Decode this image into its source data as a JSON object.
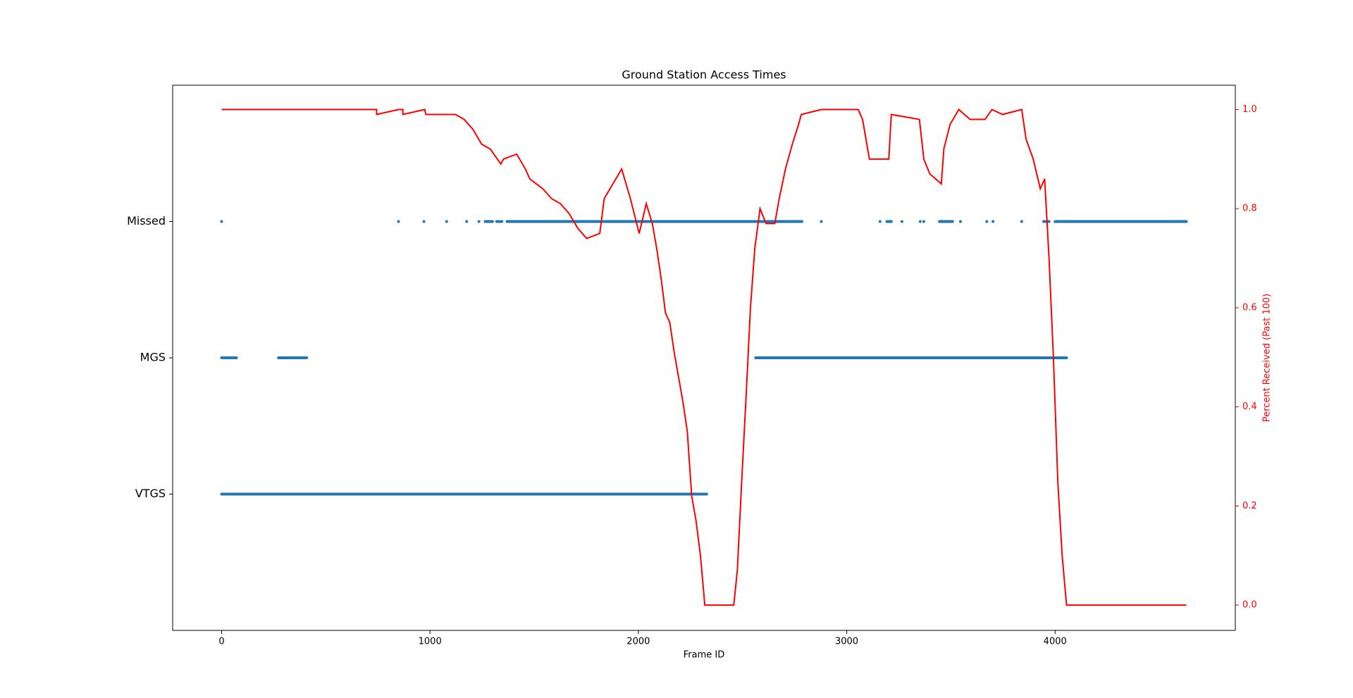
{
  "chart_data": {
    "type": "scatter",
    "title": "Ground Station Access Times",
    "xlabel": "Frame ID",
    "y2label": "Percent Received (Past 100)",
    "xlim": [
      -235,
      4865
    ],
    "xticks": [
      0,
      1000,
      2000,
      3000,
      4000
    ],
    "ylim": [
      -1,
      3
    ],
    "yticks": [
      {
        "value": 0,
        "label": "VTGS"
      },
      {
        "value": 1,
        "label": "MGS"
      },
      {
        "value": 2,
        "label": "Missed"
      }
    ],
    "y2lim": [
      -0.051,
      1.049
    ],
    "y2ticks": [
      {
        "value": 0,
        "label": "0.0"
      },
      {
        "value": 0.2,
        "label": "0.2"
      },
      {
        "value": 0.4,
        "label": "0.4"
      },
      {
        "value": 0.6,
        "label": "0.6"
      },
      {
        "value": 0.8,
        "label": "0.8"
      },
      {
        "value": 1.0,
        "label": "1.0"
      }
    ],
    "series": [
      {
        "name": "Missed",
        "color": "#1f77b4",
        "y": 2,
        "ranges": [
          [
            0,
            0
          ],
          [
            849,
            849
          ],
          [
            971,
            971
          ],
          [
            1080,
            1080
          ],
          [
            1176,
            1176
          ],
          [
            1235,
            1235
          ],
          [
            1265,
            1300
          ],
          [
            1320,
            1345
          ],
          [
            1370,
            2785
          ],
          [
            2878,
            2878
          ],
          [
            3160,
            3160
          ],
          [
            3193,
            3214
          ],
          [
            3265,
            3265
          ],
          [
            3353,
            3353
          ],
          [
            3370,
            3370
          ],
          [
            3445,
            3508
          ],
          [
            3546,
            3546
          ],
          [
            3672,
            3672
          ],
          [
            3702,
            3702
          ],
          [
            3840,
            3840
          ],
          [
            3945,
            3971
          ],
          [
            4000,
            4630
          ]
        ]
      },
      {
        "name": "MGS",
        "color": "#1f77b4",
        "y": 1,
        "ranges": [
          [
            0,
            71
          ],
          [
            273,
            408
          ],
          [
            2563,
            4055
          ]
        ]
      },
      {
        "name": "VTGS",
        "color": "#1f77b4",
        "y": 0,
        "ranges": [
          [
            0,
            2328
          ]
        ]
      },
      {
        "name": "Percent Received",
        "type": "line",
        "axis": "y2",
        "color": "#ff0000",
        "x": [
          0,
          744,
          744,
          849,
          870,
          870,
          975,
          980,
          1122,
          1164,
          1206,
          1248,
          1290,
          1340,
          1353,
          1416,
          1458,
          1479,
          1542,
          1584,
          1626,
          1668,
          1710,
          1752,
          1815,
          1836,
          1878,
          1920,
          1962,
          2004,
          2038,
          2067,
          2088,
          2109,
          2130,
          2151,
          2172,
          2193,
          2214,
          2235,
          2256,
          2277,
          2298,
          2319,
          2458,
          2475,
          2496,
          2517,
          2538,
          2559,
          2584,
          2613,
          2655,
          2676,
          2706,
          2739,
          2769,
          2782,
          2878,
          3055,
          3076,
          3109,
          3202,
          3214,
          3349,
          3370,
          3399,
          3454,
          3466,
          3496,
          3538,
          3592,
          3664,
          3697,
          3748,
          3840,
          3861,
          3895,
          3929,
          3950,
          3971,
          3992,
          4013,
          4034,
          4055,
          4630
        ],
        "values": [
          1.0,
          1.0,
          0.99,
          1.0,
          1.0,
          0.99,
          1.0,
          0.99,
          0.99,
          0.98,
          0.96,
          0.93,
          0.92,
          0.89,
          0.9,
          0.91,
          0.88,
          0.86,
          0.84,
          0.82,
          0.81,
          0.79,
          0.76,
          0.74,
          0.75,
          0.82,
          0.85,
          0.88,
          0.82,
          0.75,
          0.81,
          0.77,
          0.72,
          0.66,
          0.59,
          0.57,
          0.51,
          0.46,
          0.41,
          0.35,
          0.22,
          0.17,
          0.1,
          0.0,
          0.0,
          0.07,
          0.25,
          0.42,
          0.6,
          0.72,
          0.8,
          0.77,
          0.77,
          0.82,
          0.88,
          0.93,
          0.97,
          0.99,
          1.0,
          1.0,
          0.98,
          0.9,
          0.9,
          0.99,
          0.98,
          0.9,
          0.87,
          0.85,
          0.92,
          0.97,
          1.0,
          0.98,
          0.98,
          1.0,
          0.99,
          1.0,
          0.94,
          0.9,
          0.84,
          0.86,
          0.7,
          0.5,
          0.25,
          0.1,
          0.0,
          0.0
        ]
      }
    ]
  }
}
